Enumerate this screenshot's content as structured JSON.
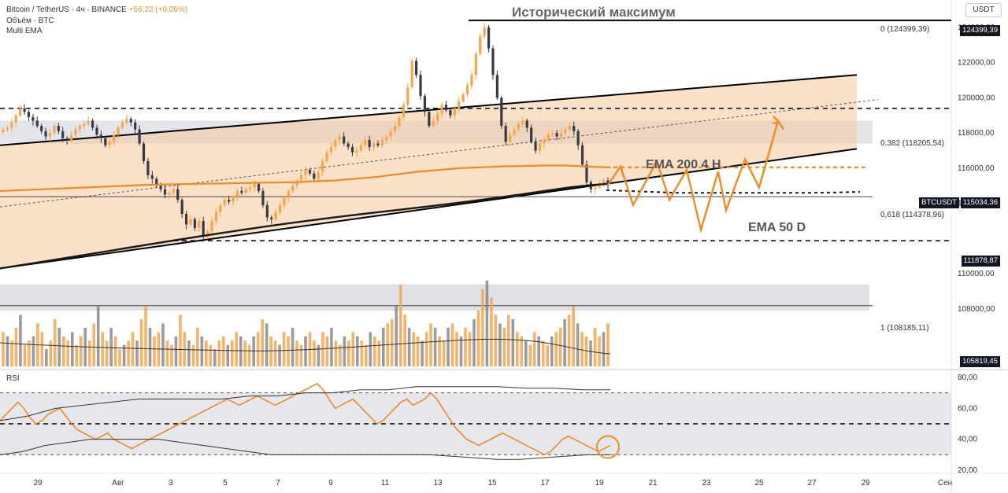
{
  "header": {
    "symbol": "Bitcoin / TetherUS · 4ч · BINANCE",
    "change": "+56,22 (+0,05%)",
    "volume_label": "Объём · BTC",
    "indicator_label": "Multi EMA"
  },
  "currency": "USDT",
  "overlay_title": "Исторический максимум",
  "annotations": {
    "ema200": "EMA 200 4 H",
    "ema50": "EMA 50 D"
  },
  "price_tags": {
    "ath": "124399,39",
    "current_symbol": "BTCUSDT",
    "current": "115034,36",
    "support": "111878,87",
    "low": "105819,45"
  },
  "fib_labels": {
    "f0": "0 (124399,39)",
    "f0382": "0,382 (118205,54)",
    "f0618": "0,618 (114378,96)",
    "f1": "1 (108185,11)"
  },
  "rsi_label": "RSI",
  "colors": {
    "up": "#f7a54a",
    "down": "#363a45",
    "ema": "#f08a24",
    "channel_fill": "#f6c89a",
    "zone": "#d1d4dc",
    "projection": "#f08a24"
  },
  "chart_data": {
    "type": "candlestick",
    "price_axis_ticks": [
      "124000,00",
      "122000,00",
      "120000,00",
      "118000,00",
      "116000,00",
      "114000,00",
      "110000,00",
      "108000,00"
    ],
    "rsi_axis_ticks": [
      "80,00",
      "60,00",
      "40,00",
      "20,00"
    ],
    "time_axis_ticks": [
      "29",
      "Авг",
      "3",
      "5",
      "7",
      "9",
      "11",
      "13",
      "15",
      "17",
      "19",
      "21",
      "23",
      "25",
      "27",
      "29",
      "Сен"
    ],
    "ylim": [
      105000,
      125200
    ],
    "rsi_ylim": [
      20,
      80
    ],
    "rsi_bands": [
      30,
      50,
      70
    ],
    "fib_levels": [
      124399.39,
      118205.54,
      114378.96,
      108185.11
    ],
    "support": 111878.87,
    "close_series": [
      118200,
      118300,
      118600,
      119000,
      119400,
      119200,
      118900,
      118700,
      118400,
      118100,
      117800,
      118000,
      118400,
      118100,
      117700,
      117600,
      117900,
      118200,
      118400,
      118500,
      118700,
      118300,
      117900,
      117700,
      117300,
      117500,
      117900,
      118300,
      118600,
      118800,
      118600,
      118200,
      117400,
      116400,
      115600,
      115400,
      115000,
      114800,
      114500,
      114600,
      114800,
      114200,
      113400,
      112800,
      113100,
      112600,
      113000,
      112100,
      112400,
      113000,
      113500,
      113900,
      114200,
      114100,
      114400,
      114700,
      114600,
      114800,
      114900,
      115100,
      114700,
      113900,
      113200,
      113100,
      113500,
      113900,
      114300,
      114700,
      115000,
      115300,
      115600,
      115900,
      115700,
      115400,
      115800,
      116400,
      116900,
      117200,
      117600,
      117800,
      117400,
      117200,
      116900,
      117000,
      117300,
      117600,
      117200,
      117400,
      117300,
      117600,
      117800,
      118100,
      118400,
      118900,
      119600,
      120600,
      122100,
      121300,
      120100,
      119200,
      118400,
      118700,
      119100,
      119600,
      119300,
      119000,
      119400,
      119800,
      120200,
      120700,
      121300,
      122500,
      123500,
      124000,
      122800,
      121300,
      120000,
      118400,
      117500,
      117900,
      118200,
      118500,
      118700,
      118300,
      117500,
      117000,
      117400,
      117600,
      117900,
      118000,
      117800,
      118000,
      118200,
      118400,
      118100,
      117300,
      116200,
      115200,
      114800,
      114900,
      115100,
      115300,
      115034
    ],
    "projection": [
      115034,
      116100,
      113900,
      116400,
      114200,
      115900,
      112500,
      115800,
      113600,
      116500,
      114900,
      118700,
      118200
    ],
    "ema_4h_200": [
      114700,
      114750,
      114800,
      114850,
      114900,
      114950,
      115000,
      115050,
      115080,
      115100,
      115120,
      115140,
      115160,
      115180,
      115200,
      115250,
      115300,
      115400,
      115500,
      115650,
      115800,
      115900,
      116000,
      116050,
      116100,
      116120,
      116150,
      116150,
      116100,
      116050
    ],
    "ema_50d_projection": [
      114750,
      114700,
      114650,
      114600,
      114600,
      114600,
      114600,
      114600,
      114600,
      114600,
      114620,
      114650
    ],
    "volume": [
      40,
      35,
      30,
      45,
      60,
      25,
      30,
      35,
      50,
      40,
      20,
      30,
      55,
      45,
      35,
      30,
      40,
      25,
      35,
      45,
      30,
      50,
      70,
      40,
      30,
      45,
      35,
      20,
      25,
      30,
      40,
      30,
      55,
      70,
      45,
      35,
      40,
      50,
      30,
      25,
      35,
      60,
      40,
      30,
      25,
      45,
      35,
      30,
      25,
      20,
      30,
      35,
      25,
      30,
      40,
      35,
      30,
      25,
      35,
      40,
      55,
      50,
      35,
      30,
      25,
      40,
      35,
      45,
      30,
      25,
      35,
      40,
      30,
      25,
      40,
      35,
      45,
      30,
      25,
      35,
      30,
      40,
      35,
      30,
      25,
      40,
      35,
      30,
      45,
      50,
      55,
      70,
      95,
      60,
      45,
      40,
      35,
      30,
      40,
      50,
      45,
      35,
      30,
      45,
      50,
      40,
      35,
      45,
      40,
      55,
      65,
      90,
      100,
      80,
      60,
      50,
      45,
      60,
      55,
      40,
      35,
      30,
      25,
      40,
      35,
      30,
      25,
      35,
      40,
      45,
      55,
      60,
      70,
      50,
      40,
      35,
      30,
      45,
      35,
      40,
      50
    ],
    "rsi_series": [
      52,
      56,
      60,
      64,
      60,
      54,
      50,
      52,
      56,
      58,
      60,
      55,
      50,
      46,
      44,
      42,
      40,
      42,
      44,
      40,
      38,
      36,
      34,
      36,
      38,
      40,
      42,
      44,
      46,
      48,
      50,
      52,
      54,
      56,
      58,
      60,
      62,
      64,
      66,
      64,
      62,
      64,
      66,
      68,
      66,
      64,
      62,
      64,
      66,
      68,
      70,
      72,
      74,
      76,
      72,
      66,
      60,
      62,
      64,
      66,
      62,
      58,
      54,
      50,
      52,
      56,
      60,
      64,
      66,
      62,
      64,
      66,
      70,
      66,
      60,
      54,
      48,
      44,
      40,
      38,
      36,
      38,
      40,
      42,
      44,
      42,
      40,
      38,
      36,
      34,
      32,
      30,
      32,
      36,
      40,
      42,
      40,
      38,
      36,
      34,
      32,
      34,
      36
    ],
    "rsi_ma": [
      30,
      32,
      36,
      38,
      40,
      40,
      40,
      40,
      38,
      36,
      34,
      32,
      30,
      30,
      30,
      30,
      30,
      30,
      30,
      30,
      29,
      28,
      27,
      27,
      28,
      29,
      30,
      30
    ],
    "rsi_upper_env": [
      52,
      55,
      60,
      62,
      64,
      66,
      66,
      66,
      66,
      68,
      68,
      70,
      70,
      72,
      72,
      74,
      74,
      74,
      74,
      73,
      73,
      72,
      72
    ],
    "channel": {
      "upper_start": 117300,
      "upper_end": 121300,
      "lower_start": 110300,
      "lower_end": 117100
    }
  }
}
